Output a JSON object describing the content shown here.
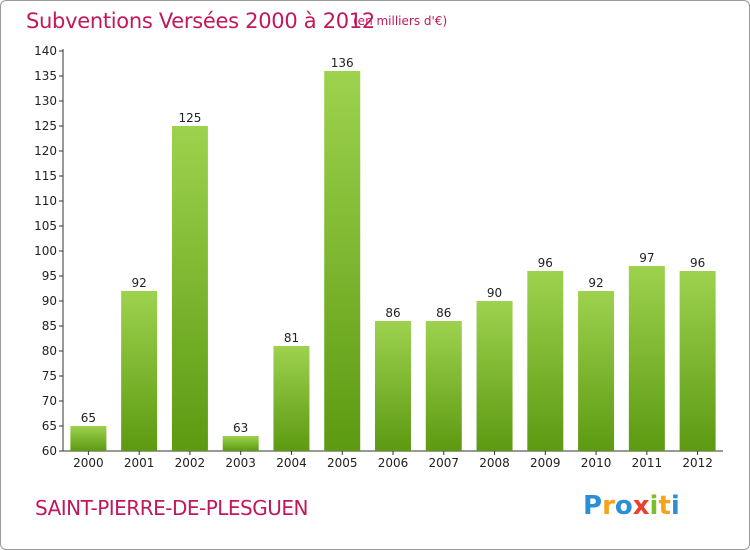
{
  "header": {
    "title": "Subventions Versées 2000 à 2012",
    "unit_note": "(en milliers d'€)"
  },
  "footer": {
    "commune": "SAINT-PIERRE-DE-PLESGUEN",
    "logo_text": "Proxiti"
  },
  "colors": {
    "accent": "#c2185b",
    "bar_top": "#9ed24e",
    "bar_bottom": "#5c9a12"
  },
  "chart_data": {
    "type": "bar",
    "title": "Subventions Versées 2000 à 2012",
    "xlabel": "",
    "ylabel": "(en milliers d'€)",
    "categories": [
      "2000",
      "2001",
      "2002",
      "2003",
      "2004",
      "2005",
      "2006",
      "2007",
      "2008",
      "2009",
      "2010",
      "2011",
      "2012"
    ],
    "values": [
      65,
      92,
      125,
      63,
      81,
      136,
      86,
      86,
      90,
      96,
      92,
      97,
      96
    ],
    "ylim": [
      60,
      140
    ],
    "yticks": [
      60,
      65,
      70,
      75,
      80,
      85,
      90,
      95,
      100,
      105,
      110,
      115,
      120,
      125,
      130,
      135,
      140
    ],
    "grid": false
  }
}
